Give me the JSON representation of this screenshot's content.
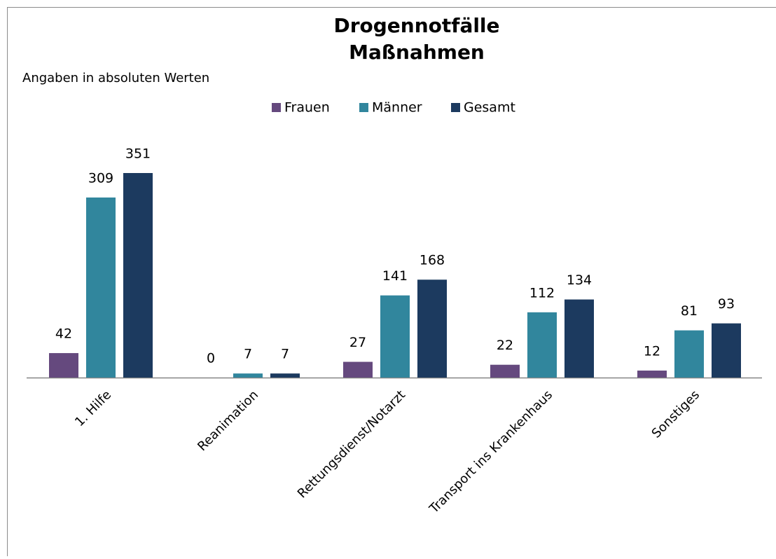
{
  "chart_data": {
    "type": "bar",
    "title": [
      "Drogennotfälle",
      "Maßnahmen"
    ],
    "subtitle": "Angaben in absoluten Werten",
    "categories": [
      "1. Hilfe",
      "Reanimation",
      "Rettungsdienst/Notarzt",
      "Transport ins Krankenhaus",
      "Sonstiges"
    ],
    "series": [
      {
        "name": "Frauen",
        "color": "#65497e",
        "values": [
          42,
          0,
          27,
          22,
          12
        ]
      },
      {
        "name": "Männer",
        "color": "#31869d",
        "values": [
          309,
          7,
          141,
          112,
          81
        ]
      },
      {
        "name": "Gesamt",
        "color": "#1c3a5f",
        "values": [
          351,
          7,
          168,
          134,
          93
        ]
      }
    ],
    "legend": "top"
  }
}
